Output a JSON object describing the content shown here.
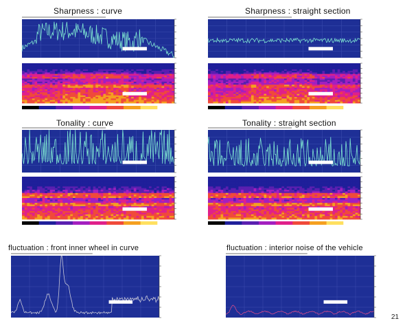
{
  "titles": {
    "sharpness_curve": "Sharpness  : curve",
    "sharpness_straight": "Sharpness : straight section",
    "tonality_curve": "Tonality : curve",
    "tonality_straight": "Tonality : straight section",
    "fluct_curve": "fluctuation : front inner wheel in curve",
    "fluct_interior": "fluctuation : interior noise of the vehicle"
  },
  "page_number": "21",
  "colors": {
    "plot_bg": "#1e2f96",
    "trace": "#7fe6d2",
    "fluct_trace": "#c8c8d8",
    "fluct_trace_pink": "#d04a8c",
    "spectrogram_dark": "#1a1a8c"
  }
}
